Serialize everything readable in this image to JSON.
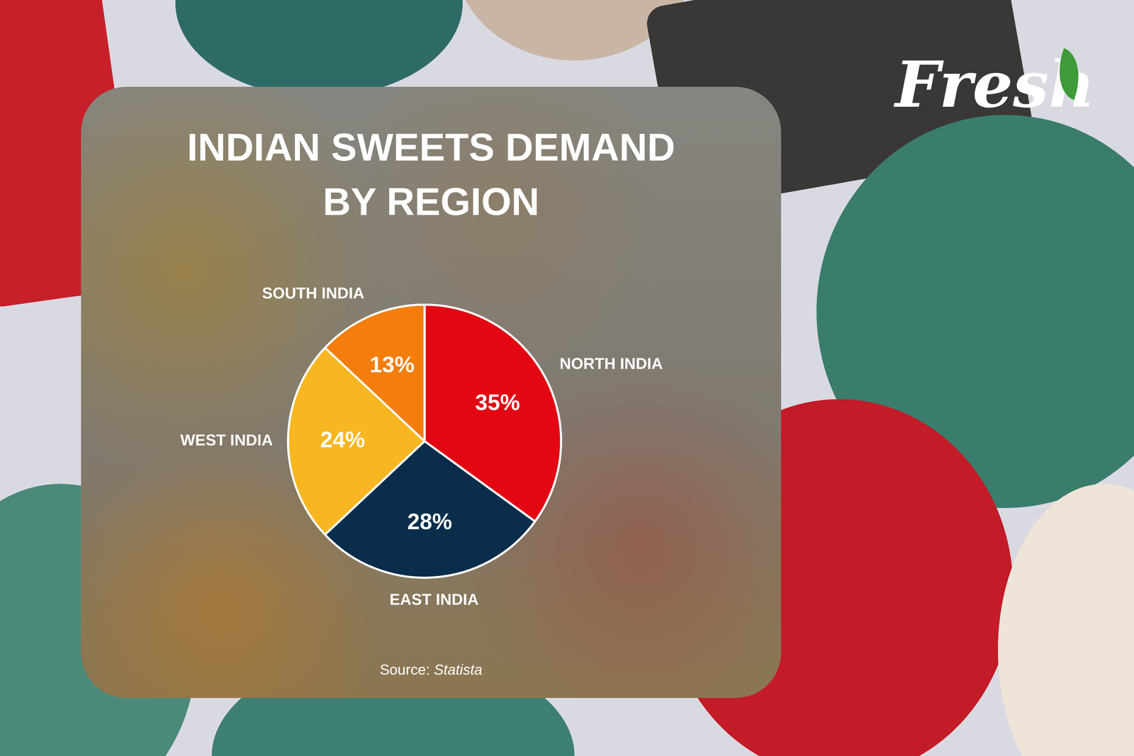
{
  "chart_data": {
    "type": "pie",
    "title": "INDIAN SWEETS DEMAND\nBY REGION",
    "categories": [
      "NORTH INDIA",
      "EAST INDIA",
      "WEST INDIA",
      "SOUTH INDIA"
    ],
    "values": [
      35,
      28,
      24,
      13
    ],
    "value_labels": [
      "35%",
      "28%",
      "24%",
      "13%"
    ],
    "colors": [
      "#e30613",
      "#0a2d4b",
      "#f8b620",
      "#f57d0b"
    ],
    "data_labels": true,
    "source_label": "Source:",
    "source": "Statista"
  },
  "brand": "Fresh"
}
